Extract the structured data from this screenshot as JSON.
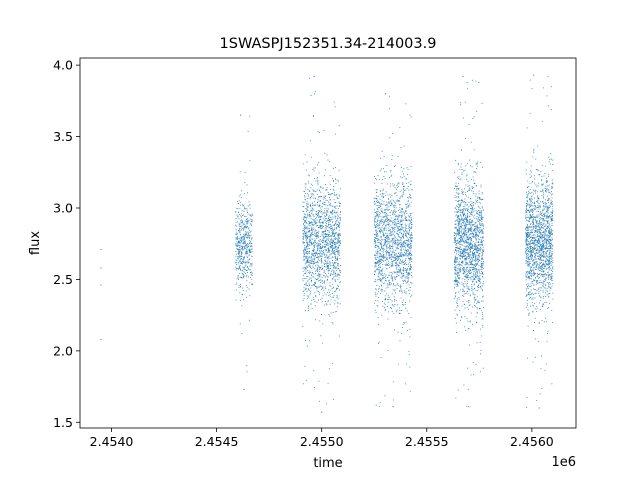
{
  "chart_data": {
    "type": "scatter",
    "title": "1SWASPJ152351.34-214003.9",
    "xlabel": "time",
    "ylabel": "flux",
    "x_offset_label": "1e6",
    "xlim": [
      2.45385,
      2.45621
    ],
    "ylim": [
      1.46,
      4.05
    ],
    "xticks": [
      2.454,
      2.4545,
      2.455,
      2.4555,
      2.456
    ],
    "xtick_labels": [
      "2.4540",
      "2.4545",
      "2.4550",
      "2.4555",
      "2.4560"
    ],
    "yticks": [
      1.5,
      2.0,
      2.5,
      3.0,
      3.5,
      4.0
    ],
    "ytick_labels": [
      "1.5",
      "2.0",
      "2.5",
      "3.0",
      "3.5",
      "4.0"
    ],
    "grid": false,
    "legend": "none",
    "series": [
      {
        "color": "#1f77b4",
        "points": [
          [
            2.45395,
            2.71
          ],
          [
            2.45395,
            2.58
          ],
          [
            2.45395,
            2.46
          ],
          [
            2.45395,
            2.08
          ]
        ],
        "clusters": [
          {
            "x_range": [
              2.45459,
              2.45467
            ],
            "center": 2.73,
            "spread": 0.16,
            "ymin": 1.73,
            "ymax": 3.65,
            "count": 500
          },
          {
            "x_range": [
              2.45491,
              2.45509
            ],
            "center": 2.76,
            "spread": 0.21,
            "ymin": 1.57,
            "ymax": 3.92,
            "count": 1500
          },
          {
            "x_range": [
              2.45525,
              2.45543
            ],
            "center": 2.76,
            "spread": 0.22,
            "ymin": 1.61,
            "ymax": 3.8,
            "count": 1500
          },
          {
            "x_range": [
              2.45563,
              2.45577
            ],
            "center": 2.75,
            "spread": 0.22,
            "ymin": 1.61,
            "ymax": 3.92,
            "count": 1500
          },
          {
            "x_range": [
              2.45597,
              2.4561
            ],
            "center": 2.76,
            "spread": 0.22,
            "ymin": 1.6,
            "ymax": 3.93,
            "count": 1500
          }
        ]
      }
    ]
  }
}
